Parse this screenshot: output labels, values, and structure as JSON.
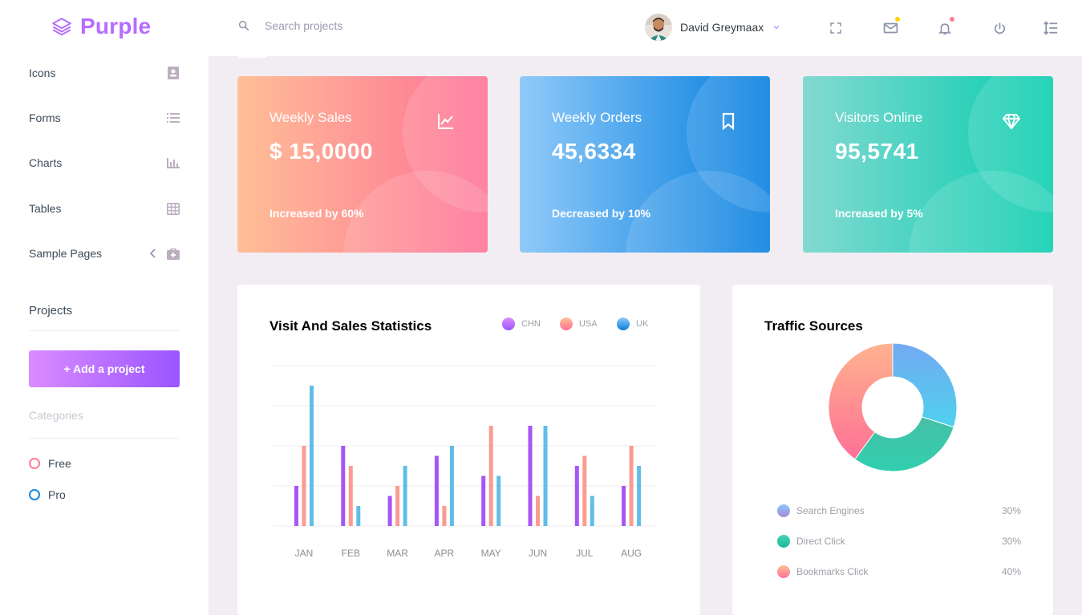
{
  "brand": {
    "name": "Purple"
  },
  "search": {
    "placeholder": "Search projects"
  },
  "user": {
    "name": "David Greymaax"
  },
  "topbar_icons": [
    "fullscreen-icon",
    "mail-icon",
    "bell-icon",
    "power-icon",
    "menu-toggle-icon"
  ],
  "sidebar": {
    "items": [
      {
        "label": "Icons",
        "icon": "contacts-icon"
      },
      {
        "label": "Forms",
        "icon": "list-icon"
      },
      {
        "label": "Charts",
        "icon": "bar-chart-icon"
      },
      {
        "label": "Tables",
        "icon": "table-icon"
      },
      {
        "label": "Sample Pages",
        "icon": "medical-bag-icon"
      }
    ],
    "projects_title": "Projects",
    "add_project_label": "+ Add a project",
    "categories_title": "Categories",
    "categories": [
      {
        "label": "Free",
        "color": "#fe7c96"
      },
      {
        "label": "Pro",
        "color": "#198ae3"
      }
    ]
  },
  "stats": [
    {
      "title": "Weekly Sales",
      "value": "$ 15,0000",
      "foot": "Increased by 60%",
      "icon": "chart-line-icon"
    },
    {
      "title": "Weekly Orders",
      "value": "45,6334",
      "foot": "Decreased by 10%",
      "icon": "bookmark-icon"
    },
    {
      "title": "Visitors Online",
      "value": "95,5741",
      "foot": "Increased by 5%",
      "icon": "diamond-icon"
    }
  ],
  "visit_chart": {
    "title": "Visit And Sales Statistics",
    "legend": [
      "CHN",
      "USA",
      "UK"
    ]
  },
  "chart_data": [
    {
      "type": "bar",
      "title": "Visit And Sales Statistics",
      "categories": [
        "JAN",
        "FEB",
        "MAR",
        "APR",
        "MAY",
        "JUN",
        "JUL",
        "AUG"
      ],
      "series": [
        {
          "name": "CHN",
          "values": [
            20,
            40,
            15,
            35,
            25,
            50,
            30,
            20
          ],
          "color": "#a855f7"
        },
        {
          "name": "USA",
          "values": [
            40,
            30,
            20,
            10,
            50,
            15,
            35,
            40
          ],
          "color": "#fb9b91"
        },
        {
          "name": "UK",
          "values": [
            70,
            10,
            30,
            40,
            25,
            50,
            15,
            30
          ],
          "color": "#60bde8"
        }
      ],
      "ylim": [
        0,
        80
      ],
      "grid": true
    },
    {
      "type": "pie",
      "title": "Traffic Sources",
      "labels": [
        "Search Engines",
        "Direct Click",
        "Bookmarks Click"
      ],
      "values": [
        30,
        30,
        40
      ],
      "colors": [
        "#56c3ea",
        "#3ed0b0",
        "#fe7c96"
      ]
    }
  ],
  "traffic": {
    "title": "Traffic Sources",
    "rows": [
      {
        "label": "Search Engines",
        "value": "30%",
        "color": "#8aa8f0"
      },
      {
        "label": "Direct Click",
        "value": "30%",
        "color": "#2fc9a8"
      },
      {
        "label": "Bookmarks Click",
        "value": "40%",
        "color": "#fc8f98"
      }
    ]
  }
}
